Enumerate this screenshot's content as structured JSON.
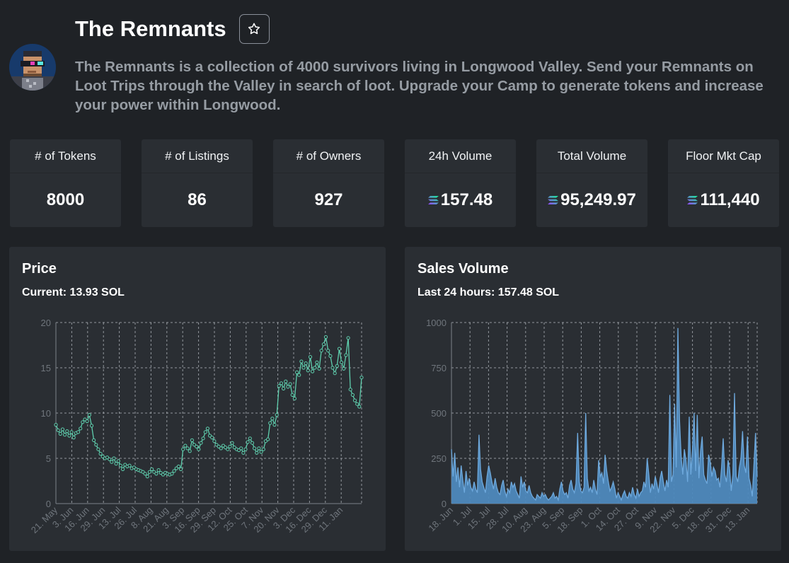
{
  "collection": {
    "title": "The Remnants",
    "description": "The Remnants is a collection of 4000 survivors living in Longwood Valley. Send your Remnants on Loot Trips through the Valley in search of loot. Upgrade your Camp to generate tokens and increase your power within Longwood.",
    "favorite_icon": "star-outline-icon",
    "avatar_icon": "pixel-character-avatar"
  },
  "stats": [
    {
      "label": "# of Tokens",
      "value": "8000",
      "currency": false
    },
    {
      "label": "# of Listings",
      "value": "86",
      "currency": false
    },
    {
      "label": "# of Owners",
      "value": "927",
      "currency": false
    },
    {
      "label": "24h Volume",
      "value": "157.48",
      "currency": true
    },
    {
      "label": "Total Volume",
      "value": "95,249.97",
      "currency": true
    },
    {
      "label": "Floor Mkt Cap",
      "value": "111,440",
      "currency": true
    }
  ],
  "currency_icon": "solana-icon",
  "colors": {
    "background": "#1f2226",
    "card": "#2a2e33",
    "price_line": "#5fcfae",
    "volume_fill": "#4e89bd",
    "volume_line": "#6ea9dd"
  },
  "price_panel": {
    "title": "Price",
    "subtitle": "Current: 13.93 SOL"
  },
  "volume_panel": {
    "title": "Sales Volume",
    "subtitle": "Last 24 hours: 157.48 SOL"
  },
  "chart_data": [
    {
      "type": "line",
      "title": "Price",
      "ylim": [
        0,
        20
      ],
      "yticks": [
        0,
        5,
        10,
        15,
        20
      ],
      "xticks": [
        "21. May",
        "3. Jun",
        "16. Jun",
        "29. Jun",
        "13. Jul",
        "26. Jul",
        "8. Aug",
        "21. Aug",
        "3. Sep",
        "16. Sep",
        "29. Sep",
        "12. Oct",
        "25. Oct",
        "7. Nov",
        "20. Nov",
        "3. Dec",
        "16. Dec",
        "29. Dec",
        "11. Jan"
      ],
      "grid": true,
      "markers": true,
      "series": [
        {
          "values": [
            8.7,
            8.1,
            7.7,
            8.2,
            7.6,
            8.0,
            7.5,
            7.9,
            7.3,
            7.8,
            7.9,
            8.3,
            9.0,
            9.3,
            9.1,
            9.8,
            8.6,
            7.0,
            6.5,
            6.0,
            5.5,
            5.2,
            5.0,
            5.1,
            4.9,
            4.6,
            5.0,
            4.4,
            4.7,
            4.2,
            3.8,
            4.3,
            4.1,
            4.2,
            3.9,
            4.0,
            3.8,
            3.7,
            3.6,
            3.5,
            3.3,
            3.0,
            3.5,
            3.8,
            3.5,
            3.3,
            3.7,
            3.4,
            3.2,
            3.4,
            3.3,
            3.2,
            3.3,
            3.6,
            3.9,
            4.1,
            3.8,
            6.0,
            6.4,
            6.1,
            5.8,
            7.0,
            6.5,
            6.3,
            6.0,
            6.7,
            7.2,
            7.9,
            8.3,
            7.5,
            7.3,
            6.9,
            6.5,
            6.3,
            6.1,
            6.4,
            6.2,
            6.0,
            6.3,
            6.7,
            6.2,
            6.0,
            5.9,
            6.1,
            5.6,
            6.0,
            6.8,
            7.2,
            6.7,
            6.1,
            5.6,
            6.1,
            5.7,
            6.0,
            6.9,
            7.1,
            8.9,
            9.4,
            8.7,
            9.8,
            13.0,
            13.3,
            12.7,
            13.5,
            12.9,
            13.2,
            12.0,
            11.6,
            14.5,
            14.2,
            15.7,
            15.0,
            15.5,
            14.7,
            16.2,
            14.6,
            15.0,
            15.6,
            14.9,
            16.9,
            17.6,
            18.4,
            16.9,
            16.3,
            15.0,
            14.4,
            15.2,
            17.1,
            15.6,
            14.9,
            16.4,
            18.3,
            12.6,
            12.0,
            11.4,
            11.0,
            10.7,
            13.93
          ]
        }
      ]
    },
    {
      "type": "area",
      "title": "Sales Volume",
      "ylim": [
        0,
        1000
      ],
      "yticks": [
        0,
        250,
        500,
        750,
        1000
      ],
      "xticks": [
        "18. Jun",
        "1. Jul",
        "15. Jul",
        "28. Jul",
        "10. Aug",
        "23. Aug",
        "5. Sep",
        "18. Sep",
        "1. Oct",
        "14. Oct",
        "27. Oct",
        "9. Nov",
        "22. Nov",
        "5. Dec",
        "18. Dec",
        "31. Dec",
        "13. Jan"
      ],
      "grid": true,
      "series": [
        {
          "values": [
            300,
            150,
            280,
            120,
            200,
            90,
            210,
            130,
            60,
            180,
            100,
            140,
            90,
            70,
            120,
            80,
            60,
            380,
            190,
            120,
            90,
            60,
            150,
            210,
            170,
            120,
            80,
            140,
            90,
            60,
            50,
            100,
            130,
            70,
            40,
            80,
            60,
            120,
            90,
            110,
            70,
            50,
            30,
            150,
            90,
            120,
            70,
            60,
            100,
            60,
            40,
            30,
            20,
            50,
            40,
            30,
            60,
            40,
            50,
            30,
            20,
            30,
            40,
            60,
            30,
            40,
            20,
            80,
            120,
            70,
            50,
            60,
            30,
            100,
            130,
            80,
            60,
            110,
            390,
            120,
            70,
            60,
            90,
            500,
            140,
            70,
            90,
            60,
            130,
            80,
            50,
            240,
            150,
            170,
            110,
            270,
            180,
            120,
            70,
            90,
            120,
            80,
            30,
            60,
            40,
            20,
            50,
            70,
            40,
            30,
            60,
            40,
            90,
            50,
            30,
            80,
            40,
            60,
            70,
            120,
            90,
            250,
            160,
            60,
            110,
            80,
            150,
            110,
            60,
            140,
            180,
            120,
            70,
            130,
            90,
            600,
            120,
            160,
            550,
            200,
            970,
            460,
            260,
            160,
            300,
            240,
            120,
            480,
            160,
            300,
            500,
            180,
            490,
            140,
            290,
            370,
            160,
            130,
            110,
            270,
            230,
            150,
            200,
            180,
            130,
            140,
            90,
            200,
            360,
            160,
            120,
            240,
            190,
            70,
            160,
            610,
            150,
            120,
            200,
            250,
            400,
            210,
            170,
            370,
            140,
            100,
            40,
            210,
            390,
            150
          ]
        }
      ]
    }
  ]
}
